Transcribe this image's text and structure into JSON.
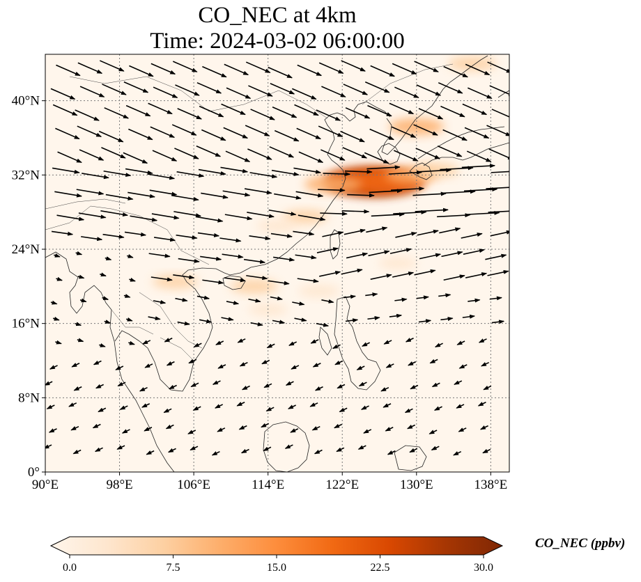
{
  "title": {
    "line1": "CO_NEC at 4km",
    "line2": "Time: 2024-03-02 06:00:00"
  },
  "map": {
    "lon_range": [
      90,
      140
    ],
    "lat_range": [
      0,
      45
    ],
    "lon_ticks": [
      "90°E",
      "98°E",
      "106°E",
      "114°E",
      "122°E",
      "130°E",
      "138°E"
    ],
    "lat_ticks": [
      "0°",
      "8°N",
      "16°N",
      "24°N",
      "32°N",
      "40°N"
    ],
    "gridlines": true,
    "field": "CO_NEC concentration (shaded) with wind vectors",
    "plumes": [
      {
        "lon": 125.5,
        "lat": 31.2,
        "value": 28
      },
      {
        "lon": 124.5,
        "lat": 31.4,
        "value": 24
      },
      {
        "lon": 127.0,
        "lat": 31.3,
        "value": 20
      },
      {
        "lon": 121.0,
        "lat": 31.0,
        "value": 12
      },
      {
        "lon": 129.5,
        "lat": 32.0,
        "value": 10
      },
      {
        "lon": 132.0,
        "lat": 32.5,
        "value": 8
      },
      {
        "lon": 130.0,
        "lat": 37.2,
        "value": 11
      },
      {
        "lon": 118.0,
        "lat": 27.5,
        "value": 7
      },
      {
        "lon": 115.0,
        "lat": 26.5,
        "value": 5
      },
      {
        "lon": 104.0,
        "lat": 20.5,
        "value": 7
      },
      {
        "lon": 112.5,
        "lat": 20.0,
        "value": 8
      },
      {
        "lon": 119.5,
        "lat": 19.5,
        "value": 5
      },
      {
        "lon": 128.0,
        "lat": 22.5,
        "value": 4
      },
      {
        "lon": 136.0,
        "lat": 44.0,
        "value": 8
      },
      {
        "lon": 114.0,
        "lat": 17.5,
        "value": 4
      }
    ]
  },
  "colorbar": {
    "label": "CO_NEC (ppbv)",
    "ticks": [
      "0.0",
      "7.5",
      "15.0",
      "22.5",
      "30.0"
    ],
    "min": 0,
    "max": 30,
    "colors": [
      "#fff5eb",
      "#fee6ce",
      "#fdd0a2",
      "#fdae6b",
      "#fd8d3c",
      "#f16913",
      "#d94801",
      "#a63603",
      "#7f2704"
    ]
  }
}
